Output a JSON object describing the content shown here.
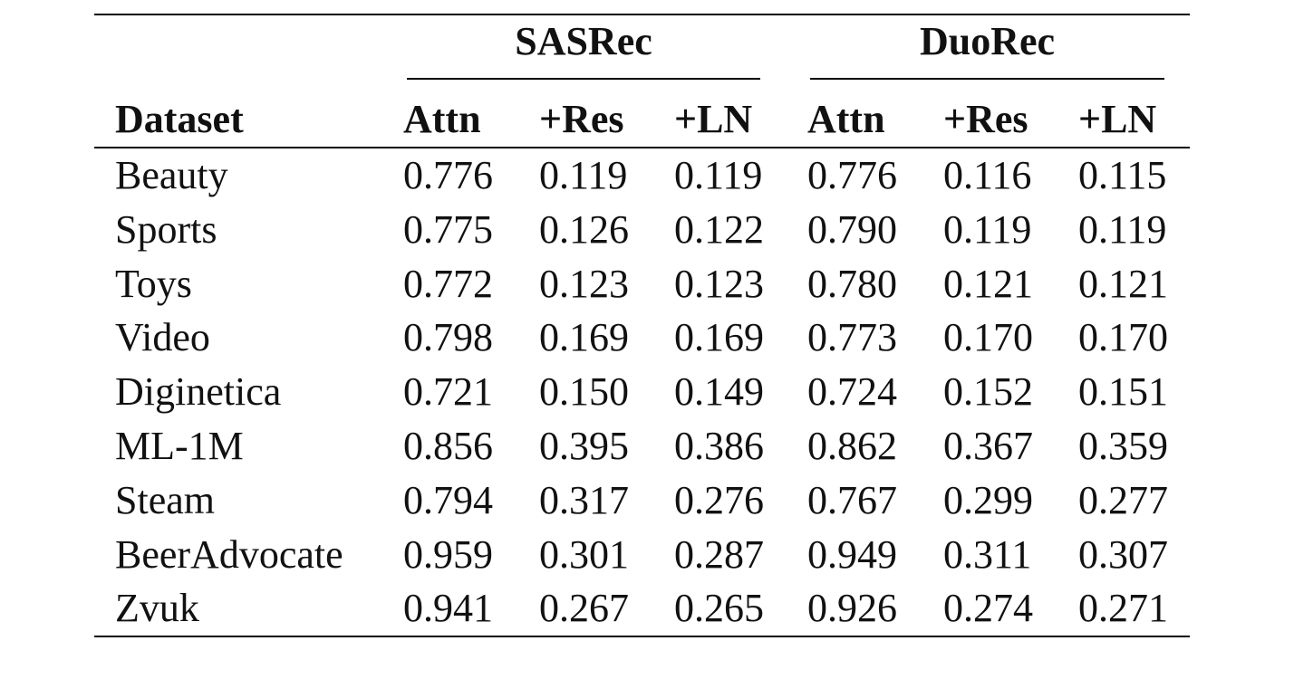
{
  "table": {
    "group_headers": [
      "SASRec",
      "DuoRec"
    ],
    "column_headers": [
      "Dataset",
      "Attn",
      "+Res",
      "+LN",
      "Attn",
      "+Res",
      "+LN"
    ],
    "rows": [
      [
        "Beauty",
        "0.776",
        "0.119",
        "0.119",
        "0.776",
        "0.116",
        "0.115"
      ],
      [
        "Sports",
        "0.775",
        "0.126",
        "0.122",
        "0.790",
        "0.119",
        "0.119"
      ],
      [
        "Toys",
        "0.772",
        "0.123",
        "0.123",
        "0.780",
        "0.121",
        "0.121"
      ],
      [
        "Video",
        "0.798",
        "0.169",
        "0.169",
        "0.773",
        "0.170",
        "0.170"
      ],
      [
        "Diginetica",
        "0.721",
        "0.150",
        "0.149",
        "0.724",
        "0.152",
        "0.151"
      ],
      [
        "ML-1M",
        "0.856",
        "0.395",
        "0.386",
        "0.862",
        "0.367",
        "0.359"
      ],
      [
        "Steam",
        "0.794",
        "0.317",
        "0.276",
        "0.767",
        "0.299",
        "0.277"
      ],
      [
        "BeerAdvocate",
        "0.959",
        "0.301",
        "0.287",
        "0.949",
        "0.311",
        "0.307"
      ],
      [
        "Zvuk",
        "0.941",
        "0.267",
        "0.265",
        "0.926",
        "0.274",
        "0.271"
      ]
    ]
  }
}
